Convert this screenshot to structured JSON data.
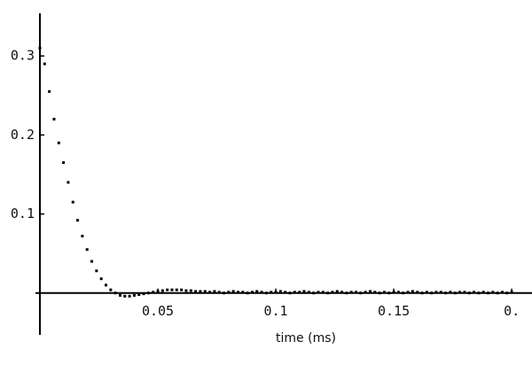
{
  "chart_data": {
    "type": "scatter",
    "x_label": "time (ms)",
    "x": [
      0,
      0.002,
      0.004,
      0.006,
      0.008,
      0.01,
      0.012,
      0.014,
      0.016,
      0.018,
      0.02,
      0.022,
      0.024,
      0.026,
      0.028,
      0.03,
      0.032,
      0.034,
      0.036,
      0.038,
      0.04,
      0.042,
      0.044,
      0.046,
      0.048,
      0.05,
      0.052,
      0.054,
      0.056,
      0.058,
      0.06,
      0.062,
      0.064,
      0.066,
      0.068,
      0.07,
      0.072,
      0.074,
      0.076,
      0.078,
      0.08,
      0.082,
      0.084,
      0.086,
      0.088,
      0.09,
      0.092,
      0.094,
      0.096,
      0.098,
      0.1,
      0.102,
      0.104,
      0.106,
      0.108,
      0.11,
      0.112,
      0.114,
      0.116,
      0.118,
      0.12,
      0.122,
      0.124,
      0.126,
      0.128,
      0.13,
      0.132,
      0.134,
      0.136,
      0.138,
      0.14,
      0.142,
      0.144,
      0.146,
      0.148,
      0.15,
      0.152,
      0.154,
      0.156,
      0.158,
      0.16,
      0.162,
      0.164,
      0.166,
      0.168,
      0.17,
      0.172,
      0.174,
      0.176,
      0.178,
      0.18,
      0.182,
      0.184,
      0.186,
      0.188,
      0.19,
      0.192,
      0.194,
      0.196,
      0.198,
      0.2
    ],
    "values": [
      0.31,
      0.29,
      0.255,
      0.22,
      0.19,
      0.165,
      0.14,
      0.115,
      0.092,
      0.072,
      0.055,
      0.04,
      0.028,
      0.018,
      0.01,
      0.004,
      0.0,
      -0.003,
      -0.004,
      -0.004,
      -0.003,
      -0.002,
      -0.001,
      0.0,
      0.001,
      0.002,
      0.003,
      0.004,
      0.004,
      0.004,
      0.004,
      0.003,
      0.003,
      0.002,
      0.002,
      0.002,
      0.001,
      0.002,
      0.001,
      0.0,
      0.001,
      0.002,
      0.001,
      0.001,
      0.0,
      0.001,
      0.002,
      0.001,
      0.0,
      0.001,
      0.001,
      0.002,
      0.001,
      0.0,
      0.001,
      0.001,
      0.002,
      0.001,
      0.0,
      0.001,
      0.001,
      0.0,
      0.001,
      0.002,
      0.001,
      0.0,
      0.001,
      0.001,
      0.0,
      0.001,
      0.002,
      0.001,
      0.0,
      0.001,
      0.0,
      0.001,
      0.001,
      0.0,
      0.001,
      0.002,
      0.001,
      0.0,
      0.001,
      0.0,
      0.001,
      0.001,
      0.0,
      0.001,
      0.0,
      0.001,
      0.001,
      0.0,
      0.001,
      0.0,
      0.001,
      0.0,
      0.001,
      0.0,
      0.001,
      0.0,
      0.001
    ],
    "color": "#000000",
    "xlim": [
      0,
      0.2086
    ],
    "ylim": [
      -0.053,
      0.354
    ],
    "xticks": [
      0.05,
      0.1,
      0.15,
      {
        "value": 0.2,
        "label": "0."
      }
    ],
    "yticks": [
      0.1,
      0.2,
      0.3
    ]
  }
}
